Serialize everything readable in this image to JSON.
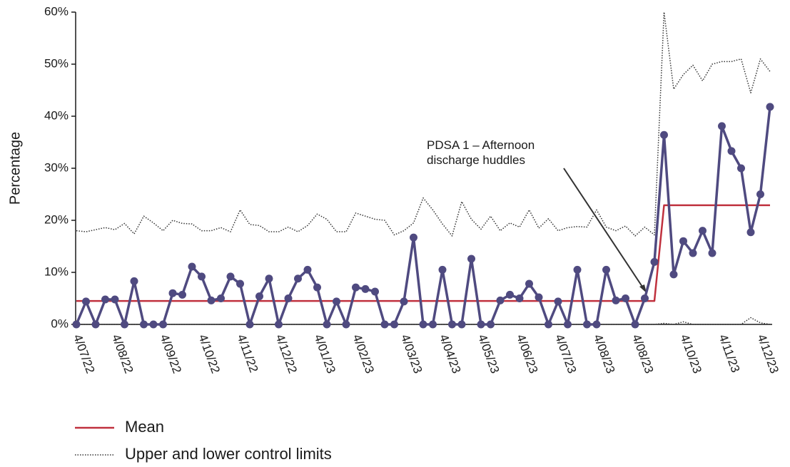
{
  "chart_data": {
    "type": "line",
    "y_label": "Percentage",
    "annotation": [
      "PDSA 1 – Afternoon discharge huddles"
    ],
    "categories": [
      "4/07/22",
      null,
      null,
      null,
      "4/08/22",
      null,
      null,
      null,
      null,
      "4/09/22",
      null,
      null,
      null,
      "4/10/22",
      null,
      null,
      null,
      "4/11/22",
      null,
      null,
      null,
      "4/12/22",
      null,
      null,
      null,
      "4/01/23",
      null,
      null,
      null,
      "4/02/23",
      null,
      null,
      null,
      null,
      "4/03/23",
      null,
      null,
      null,
      "4/04/23",
      null,
      null,
      null,
      "4/05/23",
      null,
      null,
      null,
      "4/06/23",
      null,
      null,
      null,
      "4/07/23",
      null,
      null,
      null,
      "4/08/23",
      null,
      null,
      null,
      "4/08/23",
      null,
      null,
      null,
      null,
      "4/10/23",
      null,
      null,
      null,
      "4/11/23",
      null,
      null,
      null,
      "4/12/23",
      null
    ],
    "series": [
      {
        "color": "#4f4a80",
        "markers": true,
        "values": [
          0,
          4.4,
          0,
          4.8,
          4.8,
          0,
          8.3,
          0,
          0,
          0,
          6,
          5.7,
          11.1,
          9.2,
          4.6,
          5,
          9.2,
          7.8,
          0,
          5.4,
          8.8,
          0,
          5,
          8.8,
          10.5,
          7.1,
          0,
          4.4,
          0,
          7.1,
          6.8,
          6.3,
          0,
          0,
          4.4,
          16.7,
          0,
          0,
          10.5,
          0,
          0,
          12.6,
          0,
          0,
          4.6,
          5.7,
          5,
          7.8,
          5.2,
          0,
          4.4,
          0,
          10.5,
          0,
          0,
          10.5,
          4.6,
          5,
          0,
          5,
          12,
          36.4,
          9.6,
          16,
          13.7,
          18,
          13.7,
          38.1,
          33.3,
          30,
          17.7,
          25,
          41.8
        ]
      },
      {
        "name": "Mean",
        "color": "#c0313e",
        "values": [
          4.5,
          4.5,
          4.5,
          4.5,
          4.5,
          4.5,
          4.5,
          4.5,
          4.5,
          4.5,
          4.5,
          4.5,
          4.5,
          4.5,
          4.5,
          4.5,
          4.5,
          4.5,
          4.5,
          4.5,
          4.5,
          4.5,
          4.5,
          4.5,
          4.5,
          4.5,
          4.5,
          4.5,
          4.5,
          4.5,
          4.5,
          4.5,
          4.5,
          4.5,
          4.5,
          4.5,
          4.5,
          4.5,
          4.5,
          4.5,
          4.5,
          4.5,
          4.5,
          4.5,
          4.5,
          4.5,
          4.5,
          4.5,
          4.5,
          4.5,
          4.5,
          4.5,
          4.5,
          4.5,
          4.5,
          4.5,
          4.5,
          4.5,
          4.5,
          4.5,
          4.5,
          22.9,
          22.9,
          22.9,
          22.9,
          22.9,
          22.9,
          22.9,
          22.9,
          22.9,
          22.9,
          22.9,
          22.9
        ]
      },
      {
        "name": "Upper and lower control limits",
        "color": "#333333",
        "dotted": true,
        "values": [
          18,
          17.8,
          18.2,
          18.6,
          18.2,
          19.4,
          17.4,
          20.8,
          19.5,
          18,
          20,
          19.4,
          19.3,
          18,
          18,
          18.6,
          17.8,
          22,
          19.2,
          19,
          17.8,
          17.8,
          18.7,
          17.8,
          19,
          21.2,
          20.2,
          17.8,
          17.8,
          21.4,
          20.8,
          20.2,
          20,
          17.2,
          18,
          19.5,
          24.3,
          22,
          19.3,
          17,
          23.6,
          20.2,
          18.3,
          20.8,
          18,
          19.5,
          18.7,
          22,
          18.5,
          20.3,
          18,
          18.6,
          18.8,
          18.7,
          22,
          18.7,
          18,
          18.9,
          17,
          18.7,
          17.2,
          60,
          45.2,
          48,
          49.8,
          46.8,
          50,
          50.5,
          50.5,
          51,
          44.5,
          51,
          48.6
        ]
      },
      {
        "color": "#333333",
        "dotted": true,
        "values": [
          0,
          0,
          0,
          0,
          0,
          0,
          0,
          0,
          0,
          0,
          0,
          0,
          0,
          0,
          0,
          0,
          0,
          0,
          0,
          0,
          0,
          0,
          0,
          0,
          0,
          0,
          0,
          0,
          0,
          0,
          0,
          0,
          0,
          0,
          0,
          0,
          0,
          0,
          0,
          0,
          0,
          0,
          0,
          0,
          0,
          0,
          0,
          0,
          0,
          0,
          0,
          0,
          0,
          0,
          0,
          0,
          0,
          0,
          0,
          0,
          0,
          0.2,
          0,
          0.5,
          0,
          0,
          0,
          0,
          0,
          0,
          1.3,
          0.3,
          0
        ]
      }
    ],
    "ylim": [
      0,
      60
    ],
    "yticks": [
      {
        "value": 0,
        "label": "0%"
      },
      {
        "value": 10,
        "label": "10%"
      },
      {
        "value": 20,
        "label": "20%"
      },
      {
        "value": 30,
        "label": "30%"
      },
      {
        "value": 40,
        "label": "40%"
      },
      {
        "value": 50,
        "label": "50%"
      },
      {
        "value": 60,
        "label": "60%"
      }
    ]
  }
}
